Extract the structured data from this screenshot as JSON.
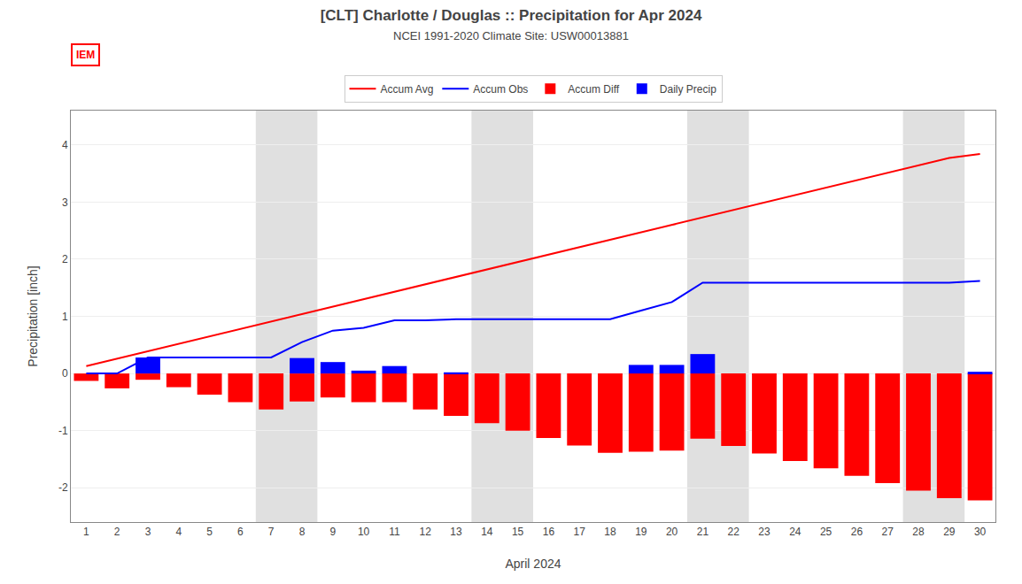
{
  "chart_data": {
    "type": "bar",
    "title": "[CLT] Charlotte / Douglas :: Precipitation for Apr 2024",
    "subtitle": "NCEI 1991-2020 Climate Site: USW00013881",
    "x_label": "April 2024",
    "y_label": "Precipitation [inch]",
    "x": [
      1,
      2,
      3,
      4,
      5,
      6,
      7,
      8,
      9,
      10,
      11,
      12,
      13,
      14,
      15,
      16,
      17,
      18,
      19,
      20,
      21,
      22,
      23,
      24,
      25,
      26,
      27,
      28,
      29,
      30
    ],
    "series": [
      {
        "name": "Accum Avg",
        "type": "line",
        "color": "#ff0000",
        "values": [
          0.13,
          0.26,
          0.39,
          0.52,
          0.65,
          0.78,
          0.91,
          1.04,
          1.17,
          1.3,
          1.43,
          1.56,
          1.69,
          1.82,
          1.95,
          2.08,
          2.21,
          2.34,
          2.47,
          2.6,
          2.73,
          2.86,
          2.99,
          3.12,
          3.25,
          3.38,
          3.51,
          3.64,
          3.77,
          3.84
        ]
      },
      {
        "name": "Accum Obs",
        "type": "line",
        "color": "#0000ff",
        "values": [
          0.0,
          0.0,
          0.28,
          0.28,
          0.28,
          0.28,
          0.28,
          0.55,
          0.75,
          0.8,
          0.93,
          0.93,
          0.95,
          0.95,
          0.95,
          0.95,
          0.95,
          0.95,
          1.1,
          1.25,
          1.59,
          1.59,
          1.59,
          1.59,
          1.59,
          1.59,
          1.59,
          1.59,
          1.59,
          1.62
        ]
      },
      {
        "name": "Accum Diff",
        "type": "bar",
        "color": "#ff0000",
        "values": [
          -0.13,
          -0.26,
          -0.11,
          -0.24,
          -0.37,
          -0.5,
          -0.63,
          -0.49,
          -0.42,
          -0.5,
          -0.5,
          -0.63,
          -0.74,
          -0.87,
          -1.0,
          -1.13,
          -1.26,
          -1.39,
          -1.37,
          -1.35,
          -1.14,
          -1.27,
          -1.4,
          -1.53,
          -1.66,
          -1.79,
          -1.92,
          -2.05,
          -2.18,
          -2.22
        ]
      },
      {
        "name": "Daily Precip",
        "type": "bar",
        "color": "#0000ff",
        "values": [
          0.0,
          0.0,
          0.28,
          0.0,
          0.0,
          0.0,
          0.0,
          0.27,
          0.2,
          0.05,
          0.13,
          0.0,
          0.02,
          0.0,
          0.0,
          0.0,
          0.0,
          0.0,
          0.15,
          0.15,
          0.34,
          0.0,
          0.0,
          0.0,
          0.0,
          0.0,
          0.0,
          0.0,
          0.0,
          0.03
        ]
      }
    ],
    "weekend_bands": [
      [
        6.5,
        8.5
      ],
      [
        13.5,
        15.5
      ],
      [
        20.5,
        22.5
      ],
      [
        27.5,
        29.5
      ]
    ],
    "annotations": [
      {
        "text": "IEM"
      }
    ],
    "xlim": [
      0.5,
      30.5
    ],
    "xticks": [
      1,
      2,
      3,
      4,
      5,
      6,
      7,
      8,
      9,
      10,
      11,
      12,
      13,
      14,
      15,
      16,
      17,
      18,
      19,
      20,
      21,
      22,
      23,
      24,
      25,
      26,
      27,
      28,
      29,
      30
    ],
    "ylim": [
      -2.6,
      4.6
    ],
    "yticks": [
      -2,
      -1,
      0,
      1,
      2,
      3,
      4
    ],
    "grid": "y",
    "legend": "top"
  }
}
